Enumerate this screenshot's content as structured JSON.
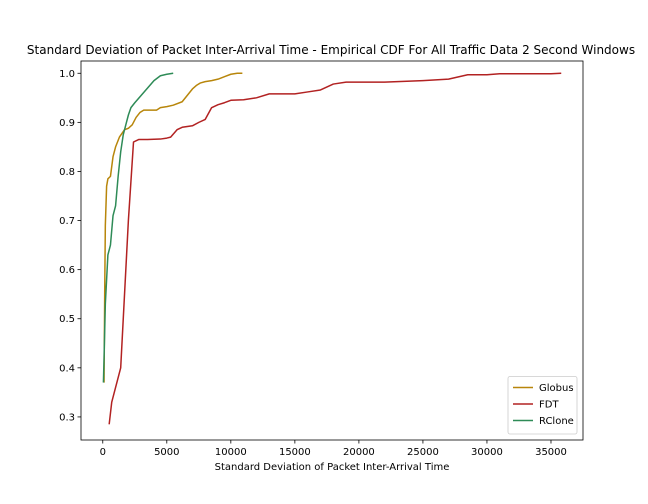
{
  "chart_data": {
    "type": "line",
    "title": "Standard Deviation of Packet Inter-Arrival Time - Empirical CDF For All Traffic Data 2 Second Windows",
    "xlabel": "Standard Deviation of Packet Inter-Arrival Time",
    "ylabel": "",
    "xlim": [
      -1700,
      37500
    ],
    "ylim": [
      0.253,
      1.025
    ],
    "xticks": [
      0,
      5000,
      10000,
      15000,
      20000,
      25000,
      30000,
      35000
    ],
    "xtick_labels": [
      "0",
      "5000",
      "10000",
      "15000",
      "20000",
      "25000",
      "30000",
      "35000"
    ],
    "yticks": [
      0.3,
      0.4,
      0.5,
      0.6,
      0.7,
      0.8,
      0.9,
      1.0
    ],
    "ytick_labels": [
      "0.3",
      "0.4",
      "0.5",
      "0.6",
      "0.7",
      "0.8",
      "0.9",
      "1.0"
    ],
    "grid": false,
    "legend_position": "lower-right",
    "series": [
      {
        "name": "Globus",
        "color": "#b8860b",
        "x": [
          100,
          150,
          200,
          300,
          400,
          600,
          800,
          1000,
          1300,
          1700,
          2000,
          2300,
          2600,
          2900,
          3200,
          4200,
          4500,
          5000,
          5500,
          6200,
          6600,
          7000,
          7300,
          7600,
          8000,
          8500,
          9000,
          9500,
          10000,
          10500,
          10900
        ],
        "y": [
          0.37,
          0.55,
          0.69,
          0.77,
          0.785,
          0.79,
          0.83,
          0.85,
          0.87,
          0.885,
          0.888,
          0.895,
          0.91,
          0.92,
          0.925,
          0.925,
          0.93,
          0.932,
          0.935,
          0.942,
          0.955,
          0.968,
          0.975,
          0.98,
          0.983,
          0.985,
          0.988,
          0.993,
          0.998,
          1.0,
          1.0
        ]
      },
      {
        "name": "FDT",
        "color": "#b22222",
        "x": [
          500,
          700,
          1000,
          1400,
          2000,
          2400,
          2800,
          3500,
          4500,
          5000,
          5300,
          5800,
          6200,
          7000,
          7500,
          8000,
          8500,
          9000,
          9500,
          10000,
          11000,
          12000,
          13000,
          15000,
          16000,
          17000,
          18000,
          19000,
          22000,
          25000,
          27000,
          28500,
          30000,
          31000,
          35000,
          35800
        ],
        "y": [
          0.285,
          0.33,
          0.36,
          0.4,
          0.7,
          0.86,
          0.865,
          0.865,
          0.866,
          0.868,
          0.87,
          0.885,
          0.89,
          0.893,
          0.9,
          0.906,
          0.93,
          0.936,
          0.94,
          0.945,
          0.946,
          0.95,
          0.958,
          0.958,
          0.962,
          0.966,
          0.978,
          0.982,
          0.982,
          0.985,
          0.988,
          0.997,
          0.997,
          0.999,
          0.999,
          1.0
        ]
      },
      {
        "name": "RClone",
        "color": "#2e8b57",
        "x": [
          50,
          100,
          200,
          400,
          600,
          800,
          1000,
          1200,
          1400,
          1600,
          1800,
          2000,
          2200,
          2500,
          3000,
          3500,
          4000,
          4500,
          5000,
          5500
        ],
        "y": [
          0.37,
          0.42,
          0.53,
          0.63,
          0.65,
          0.71,
          0.73,
          0.79,
          0.84,
          0.875,
          0.895,
          0.915,
          0.93,
          0.94,
          0.955,
          0.97,
          0.985,
          0.995,
          0.998,
          1.0
        ]
      }
    ]
  }
}
